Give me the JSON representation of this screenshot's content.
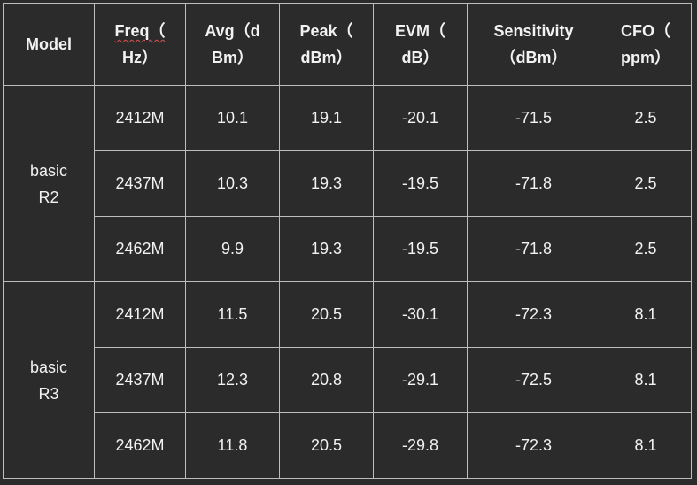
{
  "headers": [
    {
      "line1": "Model",
      "line2": ""
    },
    {
      "line1": "Freq（",
      "line2": "Hz）"
    },
    {
      "line1": "Avg（d",
      "line2": "Bm）"
    },
    {
      "line1": "Peak（",
      "line2": "dBm）"
    },
    {
      "line1": "EVM（",
      "line2": "dB）"
    },
    {
      "line1": "Sensitivity",
      "line2": "（dBm）"
    },
    {
      "line1": "CFO（",
      "line2": "ppm）"
    }
  ],
  "groups": [
    {
      "model_line1": "basic",
      "model_line2": "R2",
      "rows": [
        {
          "freq": "2412M",
          "avg": "10.1",
          "peak": "19.1",
          "evm": "-20.1",
          "sensitivity": "-71.5",
          "cfo": "2.5"
        },
        {
          "freq": "2437M",
          "avg": "10.3",
          "peak": "19.3",
          "evm": "-19.5",
          "sensitivity": "-71.8",
          "cfo": "2.5"
        },
        {
          "freq": "2462M",
          "avg": "9.9",
          "peak": "19.3",
          "evm": "-19.5",
          "sensitivity": "-71.8",
          "cfo": "2.5"
        }
      ]
    },
    {
      "model_line1": "basic",
      "model_line2": "R3",
      "rows": [
        {
          "freq": "2412M",
          "avg": "11.5",
          "peak": "20.5",
          "evm": "-30.1",
          "sensitivity": "-72.3",
          "cfo": "8.1"
        },
        {
          "freq": "2437M",
          "avg": "12.3",
          "peak": "20.8",
          "evm": "-29.1",
          "sensitivity": "-72.5",
          "cfo": "8.1"
        },
        {
          "freq": "2462M",
          "avg": "11.8",
          "peak": "20.5",
          "evm": "-29.8",
          "sensitivity": "-72.3",
          "cfo": "8.1"
        }
      ]
    }
  ]
}
